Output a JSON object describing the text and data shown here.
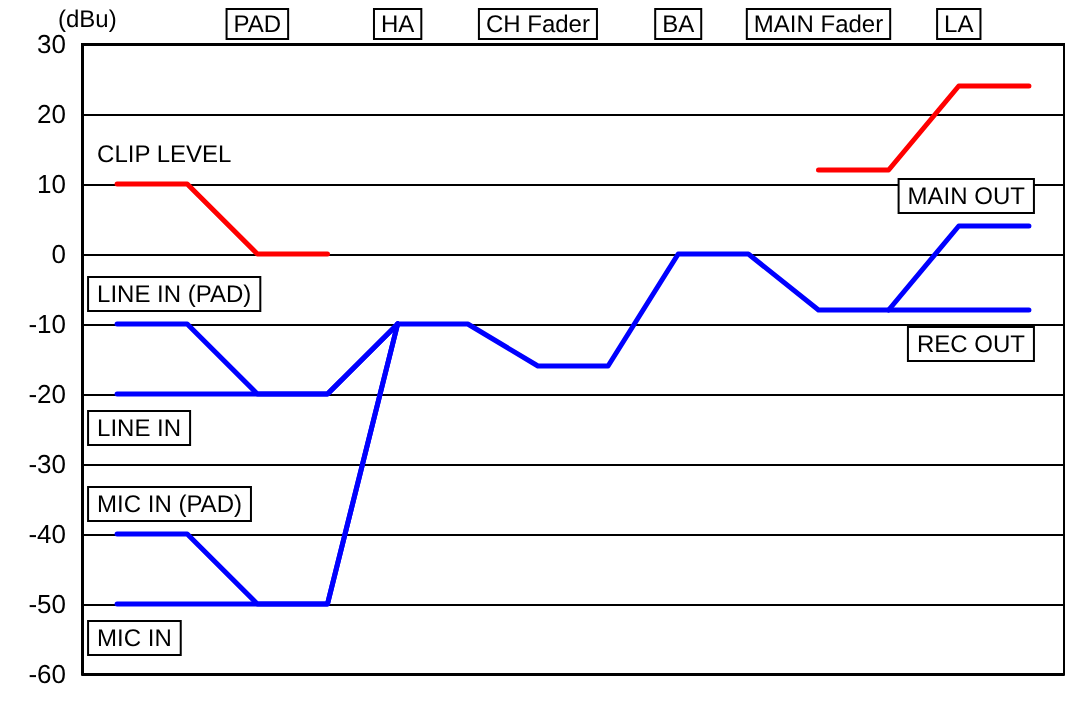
{
  "chart_data": {
    "type": "line",
    "ylabel": "(dBu)",
    "categories": [
      null,
      null,
      null,
      null,
      null,
      null,
      null,
      null,
      null,
      null,
      null,
      null,
      null,
      null
    ],
    "annotations": [
      "PAD",
      "HA",
      "CH Fader",
      "BA",
      "MAIN Fader",
      "LA"
    ],
    "ylim": [
      -60,
      30
    ],
    "yticks": [
      -60,
      -50,
      -40,
      -30,
      -20,
      -10,
      0,
      10,
      20,
      30
    ],
    "grid": "y",
    "series": [
      {
        "name": "CLIP LEVEL",
        "color": "#ff0000",
        "values": [
          10,
          10,
          0,
          0,
          null,
          null,
          null,
          null,
          null,
          null,
          null,
          null,
          null,
          null
        ]
      },
      {
        "color": "#ff0000",
        "values": [
          null,
          null,
          null,
          null,
          null,
          null,
          null,
          null,
          null,
          null,
          12,
          12,
          24,
          24
        ]
      },
      {
        "name": "LINE IN (PAD)",
        "color": "#0000ff",
        "values": [
          -10,
          -10,
          -20,
          -20,
          -10,
          null,
          null,
          null,
          null,
          null,
          null,
          null,
          null,
          null
        ]
      },
      {
        "name": "LINE IN",
        "color": "#0000ff",
        "values": [
          -20,
          -20,
          -20,
          -20,
          -10,
          null,
          null,
          null,
          null,
          null,
          null,
          null,
          null,
          null
        ]
      },
      {
        "name": "MIC IN (PAD)",
        "color": "#0000ff",
        "values": [
          -40,
          -40,
          -50,
          -50,
          -10,
          null,
          null,
          null,
          null,
          null,
          null,
          null,
          null,
          null
        ]
      },
      {
        "name": "MIC IN",
        "color": "#0000ff",
        "values": [
          -50,
          -50,
          -50,
          -50,
          -10,
          null,
          null,
          null,
          null,
          null,
          null,
          null,
          null,
          null
        ]
      },
      {
        "name": "MAIN OUT",
        "color": "#0000ff",
        "values": [
          null,
          null,
          null,
          null,
          null,
          null,
          null,
          null,
          null,
          null,
          null,
          -8,
          4,
          4
        ]
      },
      {
        "name": "REC OUT",
        "color": "#0000ff",
        "values": [
          null,
          null,
          null,
          null,
          -10,
          -10,
          -16,
          -16,
          0,
          0,
          -8,
          -8,
          -8,
          -8
        ]
      }
    ]
  }
}
